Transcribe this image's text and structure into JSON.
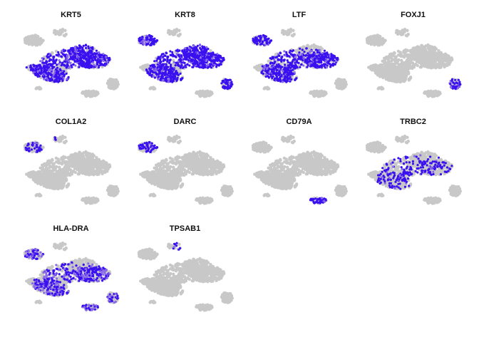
{
  "colors": {
    "background": "#ffffff",
    "low_expression": "#c8c8c8",
    "high_expression": "#3a10f0",
    "mid_expression": "#8a6ae8"
  },
  "chart_data": {
    "type": "scatter",
    "layout": "grid of small-multiple feature plots (3 rows x 4 columns)",
    "axes_visible": false,
    "grid": false,
    "legend": "none",
    "embedding": "shared 2D cell embedding (same layout in every panel)",
    "panels": [
      {
        "title": "KRT5",
        "highlight": [
          "top_arm",
          "upper_body",
          "left_tip",
          "lower_left"
        ],
        "level": 0.8,
        "density": 0.8
      },
      {
        "title": "KRT8",
        "highlight": [
          "upper_body",
          "lower_left",
          "top_arm",
          "left_cluster",
          "bottom_right_pair"
        ],
        "level": 0.85,
        "density": 0.85
      },
      {
        "title": "LTF",
        "highlight": [
          "lower_left",
          "left_cluster",
          "center_body"
        ],
        "level": 0.85,
        "density": 0.7
      },
      {
        "title": "FOXJ1",
        "highlight": [
          "bottom_right_pair"
        ],
        "level": 0.9,
        "density": 0.6
      },
      {
        "title": "COL1A2",
        "highlight": [
          "left_cluster_lower",
          "top_left_dot"
        ],
        "level": 0.85,
        "density": 0.5
      },
      {
        "title": "DARC",
        "highlight": [
          "left_cluster"
        ],
        "level": 0.9,
        "density": 0.6
      },
      {
        "title": "CD79A",
        "highlight": [
          "bottom_center_blob"
        ],
        "level": 0.9,
        "density": 0.7
      },
      {
        "title": "TRBC2",
        "highlight": [
          "left_stripe",
          "center_body_sparse"
        ],
        "level": 0.85,
        "density": 0.25
      },
      {
        "title": "HLA-DRA",
        "highlight": [
          "left_cluster",
          "upper_body",
          "lower_left",
          "bottom_right_pair",
          "bottom_center_blob"
        ],
        "level": 0.6,
        "density": 0.55
      },
      {
        "title": "TPSAB1",
        "highlight": [
          "top_small_dot"
        ],
        "level": 0.9,
        "density": 0.6
      }
    ]
  }
}
